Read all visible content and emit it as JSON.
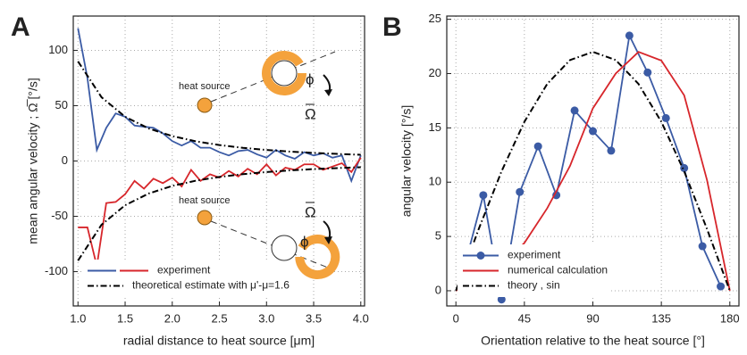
{
  "chart_data": [
    {
      "type": "line",
      "panel_label": "A",
      "x_label": "radial distance to heat source [μm]",
      "y_label": "mean angular velocity ; Ω̅ [°/s]",
      "xlim": [
        0.95,
        4.04
      ],
      "ylim": [
        -131,
        131
      ],
      "xticks": [
        {
          "value": 1,
          "label": "1.0"
        },
        1.5,
        {
          "value": 2,
          "label": "2.0"
        },
        2.5,
        {
          "value": 3,
          "label": "3.0"
        },
        3.5,
        {
          "value": 4,
          "label": "4.0"
        }
      ],
      "yticks": [
        -100,
        -50,
        0,
        50,
        100
      ],
      "grid": true,
      "series": [
        {
          "color": "#3b5ba5",
          "x": [
            1.0,
            1.1,
            1.2,
            1.3,
            1.4,
            1.5,
            1.6,
            1.7,
            1.8,
            1.9,
            2.0,
            2.1,
            2.2,
            2.3,
            2.4,
            2.5,
            2.6,
            2.7,
            2.8,
            2.9,
            3.0,
            3.1,
            3.2,
            3.3,
            3.4,
            3.5,
            3.6,
            3.7,
            3.8,
            3.9,
            4.0
          ],
          "values": [
            120,
            75,
            10,
            30,
            43,
            40,
            32,
            31,
            30,
            25,
            18,
            14,
            18,
            12,
            12,
            8,
            5,
            9,
            10,
            6,
            3,
            10,
            5,
            2,
            8,
            5,
            7,
            3,
            5,
            -18,
            5
          ]
        },
        {
          "color": "#d7262b",
          "x": [
            1.0,
            1.1,
            1.2,
            1.3,
            1.4,
            1.5,
            1.6,
            1.7,
            1.8,
            1.9,
            2.0,
            2.1,
            2.2,
            2.3,
            2.4,
            2.5,
            2.6,
            2.7,
            2.8,
            2.9,
            3.0,
            3.1,
            3.2,
            3.3,
            3.4,
            3.5,
            3.6,
            3.7,
            3.8,
            3.9,
            4.0
          ],
          "values": [
            -60,
            -60,
            -95,
            -38,
            -37,
            -30,
            -18,
            -25,
            -16,
            -20,
            -15,
            -23,
            -8,
            -18,
            -12,
            -15,
            -9,
            -14,
            -7,
            -12,
            -3,
            -13,
            -6,
            -8,
            -3,
            -3,
            -8,
            -5,
            -2,
            -10,
            3
          ]
        },
        {
          "color": "#000000",
          "dash": true,
          "x": [
            1.0,
            1.25,
            1.5,
            1.75,
            2.0,
            2.25,
            2.5,
            2.75,
            3.0,
            3.25,
            3.5,
            3.75,
            4.0
          ],
          "values": [
            90,
            57.6,
            40,
            29.4,
            22.5,
            17.8,
            14.4,
            11.9,
            10,
            8.5,
            7.3,
            6.4,
            5.6
          ]
        },
        {
          "color": "#000000",
          "dash": true,
          "x": [
            1.0,
            1.25,
            1.5,
            1.75,
            2.0,
            2.25,
            2.5,
            2.75,
            3.0,
            3.25,
            3.5,
            3.75,
            4.0
          ],
          "values": [
            -90,
            -57.6,
            -40,
            -29.4,
            -22.5,
            -17.8,
            -14.4,
            -11.9,
            -10,
            -8.5,
            -7.3,
            -6.4,
            -5.6
          ]
        }
      ],
      "legend_position": "lower left",
      "legend": [
        {
          "label": "experiment",
          "colors": [
            "#3b5ba5",
            "#d7262b"
          ]
        },
        {
          "label": "theoretical estimate with μ'-μ=1.6",
          "colors": [
            "#000000"
          ],
          "dash": true
        }
      ],
      "annotations": [
        "heat source",
        "heat source",
        "ϕ",
        "ϕ",
        "Ω",
        "Ω"
      ]
    },
    {
      "type": "line",
      "panel_label": "B",
      "x_label": "Orientation relative to the heat source [°]",
      "y_label": "angular velocity [°/s]",
      "xlim": [
        -6,
        186
      ],
      "ylim": [
        -1.4,
        25.3
      ],
      "xticks": [
        0,
        45,
        90,
        135,
        180
      ],
      "yticks": [
        0,
        5,
        10,
        15,
        20,
        25
      ],
      "grid": true,
      "series": [
        {
          "name": "experiment",
          "color": "#3b5ba5",
          "marker": true,
          "x": [
            5,
            18,
            30,
            42,
            54,
            66,
            78,
            90,
            102,
            114,
            126,
            138,
            150,
            162,
            174
          ],
          "values": [
            1.9,
            8.8,
            -0.8,
            9.1,
            13.3,
            8.8,
            16.6,
            14.7,
            12.9,
            23.5,
            20.1,
            15.9,
            11.3,
            4.1,
            0.4
          ]
        },
        {
          "name": "numerical calculation",
          "color": "#d7262b",
          "x": [
            0,
            15,
            30,
            45,
            60,
            75,
            90,
            105,
            120,
            135,
            150,
            165,
            180
          ],
          "values": [
            0,
            1.2,
            2.3,
            4.4,
            7.6,
            11.5,
            16.8,
            20.0,
            22.0,
            21.2,
            18.0,
            10.2,
            0
          ]
        },
        {
          "name": "theory , sin",
          "color": "#000000",
          "dash": true,
          "x": [
            0,
            15,
            30,
            45,
            60,
            75,
            90,
            105,
            120,
            135,
            150,
            165,
            180
          ],
          "values": [
            0,
            5.69,
            11,
            15.56,
            19.05,
            21.25,
            22,
            21.25,
            19.05,
            15.56,
            11,
            5.69,
            0
          ]
        }
      ],
      "legend_position": "lower left"
    }
  ]
}
